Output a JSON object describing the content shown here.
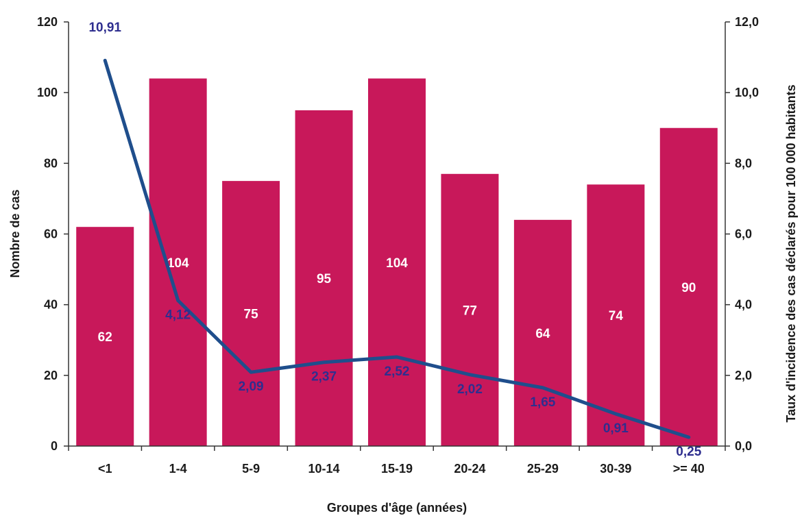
{
  "chart_data": {
    "type": "bar",
    "xlabel": "Groupes d'âge (années)",
    "ylabel": "Nombre de cas",
    "y2label": "Taux d'incidence des cas déclarés pour 100 000 habitants",
    "categories": [
      "<1",
      "1-4",
      "5-9",
      "10-14",
      "15-19",
      "20-24",
      "25-29",
      "30-39",
      ">= 40"
    ],
    "series": [
      {
        "type": "bar",
        "axis": "left",
        "values": [
          62,
          104,
          75,
          95,
          104,
          77,
          64,
          74,
          90
        ],
        "labels": [
          "62",
          "104",
          "75",
          "95",
          "104",
          "77",
          "64",
          "74",
          "90"
        ]
      },
      {
        "type": "line",
        "axis": "right",
        "values": [
          10.91,
          4.12,
          2.09,
          2.37,
          2.52,
          2.02,
          1.65,
          0.91,
          0.25
        ],
        "labels": [
          "10,91",
          "4,12",
          "2,09",
          "2,37",
          "2,52",
          "2,02",
          "1,65",
          "0,91",
          "0,25"
        ]
      }
    ],
    "ylim": [
      0,
      120
    ],
    "y2lim": [
      0,
      12
    ],
    "yticks": [
      "0",
      "20",
      "40",
      "60",
      "80",
      "100",
      "120"
    ],
    "y2ticks": [
      "0,0",
      "2,0",
      "4,0",
      "6,0",
      "8,0",
      "10,0",
      "12,0"
    ],
    "grid": false,
    "legend": "none",
    "colors": {
      "bar": "#c8185a",
      "line": "#1f4e8c",
      "rate_label": "#2e2e8f",
      "axis": "#333333"
    }
  }
}
